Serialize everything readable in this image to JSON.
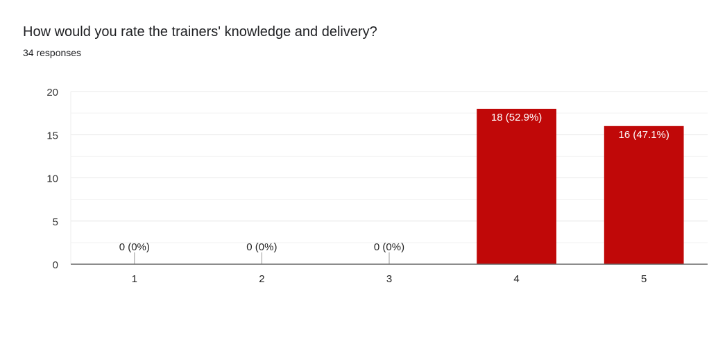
{
  "chart_data": {
    "type": "bar",
    "title": "How would you rate the trainers' knowledge and delivery?",
    "subtitle": "34 responses",
    "categories": [
      "1",
      "2",
      "3",
      "4",
      "5"
    ],
    "values": [
      0,
      0,
      0,
      18,
      16
    ],
    "data_labels": [
      "0 (0%)",
      "0 (0%)",
      "0 (0%)",
      "18 (52.9%)",
      "16 (47.1%)"
    ],
    "ylim": [
      0,
      20
    ],
    "yticks": [
      "0",
      "5",
      "10",
      "15",
      "20"
    ],
    "ytick_values": [
      0,
      5,
      10,
      15,
      20
    ],
    "minor_grid_step": 2.5,
    "grid": true,
    "bar_color": "#c00808",
    "xlabel": "",
    "ylabel": ""
  }
}
